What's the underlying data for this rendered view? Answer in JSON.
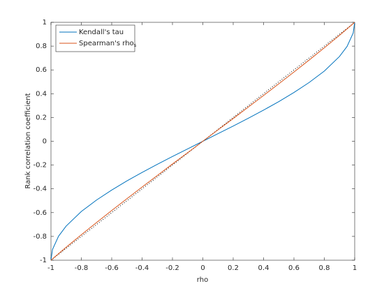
{
  "chart_data": {
    "type": "line",
    "xlabel": "rho",
    "ylabel": "Rank correlation coefficient",
    "x": [
      -1,
      -0.99,
      -0.95,
      -0.9,
      -0.8,
      -0.7,
      -0.6,
      -0.5,
      -0.4,
      -0.3,
      -0.2,
      -0.1,
      0,
      0.1,
      0.2,
      0.3,
      0.4,
      0.5,
      0.6,
      0.7,
      0.8,
      0.9,
      0.95,
      0.99,
      1
    ],
    "series": [
      {
        "name": "Kendall's tau",
        "color": "#0072BD",
        "values": [
          -1,
          -0.91,
          -0.798,
          -0.713,
          -0.59,
          -0.494,
          -0.41,
          -0.333,
          -0.262,
          -0.194,
          -0.128,
          -0.064,
          0,
          0.064,
          0.128,
          0.194,
          0.262,
          0.333,
          0.41,
          0.494,
          0.59,
          0.713,
          0.798,
          0.91,
          1
        ]
      },
      {
        "name": "Spearman's rho",
        "name_subscript": "s",
        "color": "#D95319",
        "values": [
          -1,
          -0.989,
          -0.945,
          -0.891,
          -0.786,
          -0.683,
          -0.582,
          -0.483,
          -0.385,
          -0.288,
          -0.191,
          -0.096,
          0,
          0.096,
          0.191,
          0.288,
          0.385,
          0.483,
          0.582,
          0.683,
          0.786,
          0.891,
          0.945,
          0.989,
          1
        ]
      }
    ],
    "reference_line": {
      "x": [
        -1,
        1
      ],
      "y": [
        -1,
        1
      ],
      "color": "#000000",
      "style": "dotted"
    },
    "xlim": [
      -1,
      1
    ],
    "ylim": [
      -1,
      1
    ],
    "xticks": [
      -1,
      -0.8,
      -0.6,
      -0.4,
      -0.2,
      0,
      0.2,
      0.4,
      0.6,
      0.8,
      1
    ],
    "yticks": [
      -1,
      -0.8,
      -0.6,
      -0.4,
      -0.2,
      0,
      0.2,
      0.4,
      0.6,
      0.8,
      1
    ],
    "legend": "top-left",
    "grid": false
  }
}
